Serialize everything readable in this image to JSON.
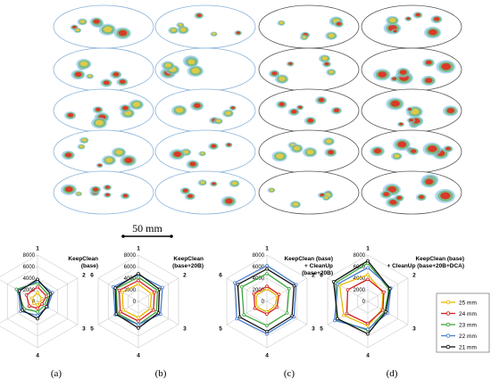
{
  "figure": {
    "scale_bar_label": "50 mm",
    "panels": [
      {
        "letter": "(a)",
        "title_lines": [
          "KeepClean",
          "(base)"
        ],
        "density": 0.55
      },
      {
        "letter": "(b)",
        "title_lines": [
          "KeepClean",
          "(base+20B)"
        ],
        "density": 0.45
      },
      {
        "letter": "(c)",
        "title_lines": [
          "KeepClean (base)",
          "+ CleanUp",
          "(base+20B)"
        ],
        "density": 0.35
      },
      {
        "letter": "(d)",
        "title_lines": [
          "KeepClean (base)",
          "+ CleanUp (base+20B+DCA)"
        ],
        "density": 0.85
      }
    ]
  },
  "chart_data": [
    {
      "type": "radar",
      "title": "KeepClean (base)",
      "axes": [
        "1",
        "2",
        "3",
        "4",
        "5",
        "6"
      ],
      "rlim": [
        0,
        8000
      ],
      "ticks": [
        "0",
        "2000",
        "4000",
        "6000",
        "8000"
      ],
      "series": [
        {
          "name": "25 mm",
          "color": "#e8b800",
          "values": [
            1500,
            900,
            500,
            600,
            700,
            1100
          ]
        },
        {
          "name": "24 mm",
          "color": "#d62020",
          "values": [
            2500,
            1800,
            900,
            1200,
            1600,
            2200
          ]
        },
        {
          "name": "23 mm",
          "color": "#3aa63a",
          "values": [
            3200,
            2200,
            1400,
            1800,
            2600,
            4200
          ]
        },
        {
          "name": "22 mm",
          "color": "#4a7fd4",
          "values": [
            3500,
            3000,
            2000,
            2400,
            3400,
            3800
          ]
        },
        {
          "name": "21 mm",
          "color": "#111111",
          "values": [
            3800,
            2600,
            1800,
            3000,
            3000,
            3600
          ]
        }
      ]
    },
    {
      "type": "radar",
      "title": "KeepClean (base+20B)",
      "axes": [
        "1",
        "2",
        "3",
        "4",
        "5",
        "6"
      ],
      "rlim": [
        0,
        8000
      ],
      "ticks": [
        "0",
        "2000",
        "4000",
        "6000",
        "8000"
      ],
      "series": [
        {
          "name": "25 mm",
          "color": "#e8b800",
          "values": [
            3000,
            2600,
            2400,
            2800,
            3000,
            3200
          ]
        },
        {
          "name": "24 mm",
          "color": "#d62020",
          "values": [
            3600,
            3200,
            3000,
            3400,
            3600,
            3800
          ]
        },
        {
          "name": "23 mm",
          "color": "#3aa63a",
          "values": [
            4200,
            3800,
            3600,
            4000,
            4200,
            4400
          ]
        },
        {
          "name": "22 mm",
          "color": "#4a7fd4",
          "values": [
            4600,
            4800,
            4400,
            4000,
            4600,
            5000
          ]
        },
        {
          "name": "21 mm",
          "color": "#111111",
          "values": [
            4800,
            4200,
            4000,
            4600,
            4400,
            4600
          ]
        }
      ]
    },
    {
      "type": "radar",
      "title": "KeepClean (base) + CleanUp (base+20B)",
      "axes": [
        "1",
        "2",
        "3",
        "4",
        "5",
        "6"
      ],
      "rlim": [
        0,
        8000
      ],
      "ticks": [
        "0",
        "2000",
        "4000",
        "6000",
        "8000"
      ],
      "series": [
        {
          "name": "25 mm",
          "color": "#e8b800",
          "values": [
            2200,
            2000,
            1600,
            1800,
            2000,
            2200
          ]
        },
        {
          "name": "24 mm",
          "color": "#d62020",
          "values": [
            2600,
            2400,
            2000,
            2200,
            2400,
            2600
          ]
        },
        {
          "name": "23 mm",
          "color": "#3aa63a",
          "values": [
            4800,
            4400,
            4000,
            4200,
            4600,
            5000
          ]
        },
        {
          "name": "22 mm",
          "color": "#4a7fd4",
          "values": [
            6200,
            5800,
            5400,
            5600,
            6000,
            6400
          ]
        },
        {
          "name": "21 mm",
          "color": "#111111",
          "values": [
            5600,
            5400,
            5000,
            5200,
            5400,
            5800
          ]
        }
      ]
    },
    {
      "type": "radar",
      "title": "KeepClean (base) + CleanUp (base+20B+DCA)",
      "axes": [
        "1",
        "2",
        "3",
        "4",
        "5",
        "6"
      ],
      "rlim": [
        0,
        8000
      ],
      "ticks": [
        "0",
        "2000",
        "4000",
        "6000",
        "8000"
      ],
      "series": [
        {
          "name": "25 mm",
          "color": "#e8b800",
          "values": [
            4600,
            3000,
            2800,
            4200,
            4800,
            5600
          ]
        },
        {
          "name": "24 mm",
          "color": "#d62020",
          "values": [
            3800,
            3200,
            3000,
            3800,
            4200,
            4000
          ]
        },
        {
          "name": "23 mm",
          "color": "#3aa63a",
          "values": [
            6600,
            4200,
            3400,
            5000,
            6200,
            6400
          ]
        },
        {
          "name": "22 mm",
          "color": "#4a7fd4",
          "values": [
            5800,
            4600,
            4000,
            4800,
            6600,
            6000
          ]
        },
        {
          "name": "21 mm",
          "color": "#111111",
          "values": [
            7000,
            4400,
            3600,
            5600,
            6000,
            6800
          ]
        }
      ]
    }
  ],
  "legend": [
    {
      "label": "25 mm",
      "color": "#e8b800"
    },
    {
      "label": "24 mm",
      "color": "#d62020"
    },
    {
      "label": "23 mm",
      "color": "#3aa63a"
    },
    {
      "label": "22 mm",
      "color": "#4a7fd4"
    },
    {
      "label": "21 mm",
      "color": "#111111"
    }
  ]
}
